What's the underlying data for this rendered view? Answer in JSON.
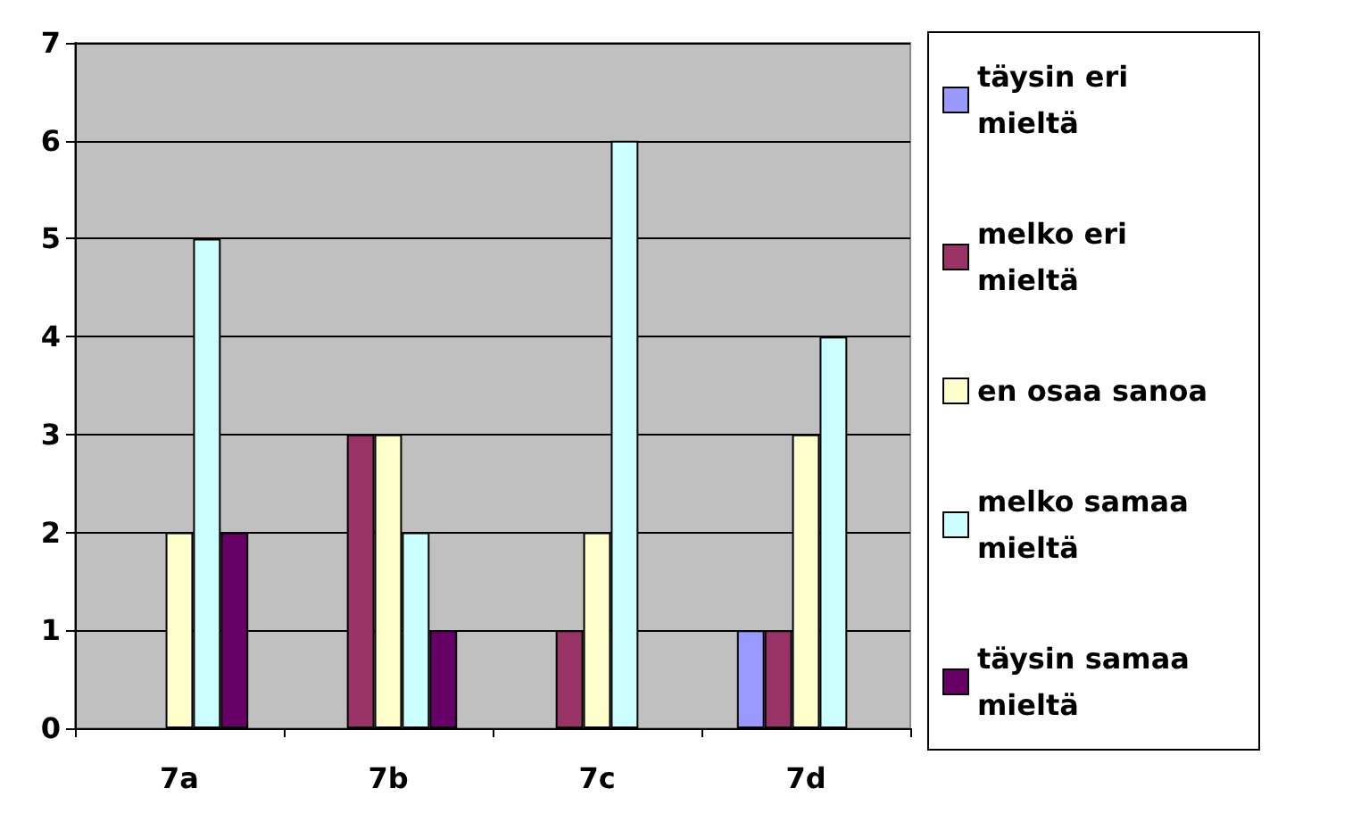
{
  "chart_data": {
    "type": "bar",
    "categories": [
      "7a",
      "7b",
      "7c",
      "7d"
    ],
    "series": [
      {
        "name": "täysin eri mieltä",
        "color": "#9999ff",
        "values": [
          0,
          0,
          0,
          1
        ]
      },
      {
        "name": "melko eri mieltä",
        "color": "#993366",
        "values": [
          0,
          3,
          1,
          1
        ]
      },
      {
        "name": "en osaa sanoa",
        "color": "#ffffcc",
        "values": [
          2,
          3,
          2,
          3
        ]
      },
      {
        "name": "melko samaa mieltä",
        "color": "#ccffff",
        "values": [
          5,
          2,
          6,
          4
        ]
      },
      {
        "name": "täysin samaa mieltä",
        "color": "#660066",
        "values": [
          2,
          1,
          0,
          0
        ]
      }
    ],
    "ylim": [
      0,
      7
    ],
    "yticks": [
      0,
      1,
      2,
      3,
      4,
      5,
      6,
      7
    ],
    "grid": "y",
    "legend": "right"
  }
}
